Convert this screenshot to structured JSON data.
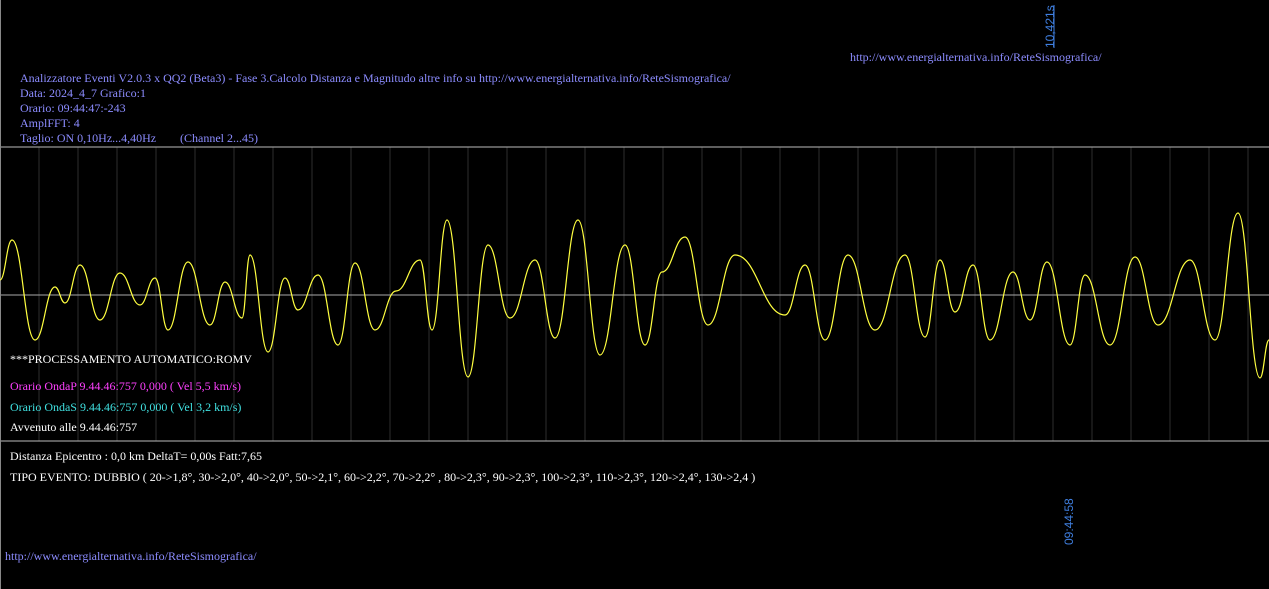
{
  "header": {
    "top_time": "10,421s",
    "top_url": "http://www.energialternativa.info/ReteSismografica/",
    "title": "Analizzatore Eventi V2.0.3 x QQ2 (Beta3) - Fase 3.Calcolo Distanza e Magnitudo altre info su http://www.energialternativa.info/ReteSismografica/",
    "data": "Data: 2024_4_7 Grafico:1",
    "orario": "Orario: 09:44:47:-243",
    "ampl": "AmplFFT: 4",
    "taglio": "Taglio: ON 0,10Hz...4,40Hz",
    "channel": "(Channel 2...45)"
  },
  "report": {
    "processing": "***PROCESSAMENTO AUTOMATICO:ROMV",
    "onda_p": "Orario OndaP 9.44.46:757  0,000 ( Vel 5,5 km/s)",
    "onda_s": "Orario OndaS 9.44.46:757  0,000 ( Vel 3,2 km/s)",
    "avvenuto": "Avvenuto alle 9.44.46:757",
    "distanza": "Distanza Epicentro : 0,0 km DeltaT= 0,00s  Fatt:7,65",
    "tipo": "TIPO EVENTO: DUBBIO ( 20->1,8°, 30->2,0°, 40->2,0°, 50->2,1°, 60->2,2°, 70->2,2° , 80->2,3°, 90->2,3°, 100->2,3°, 110->2,3°, 120->2,4°, 130->2,4 )"
  },
  "footer": {
    "time": "09:44:58",
    "url": "http://www.energialternativa.info/ReteSismografica/"
  }
}
